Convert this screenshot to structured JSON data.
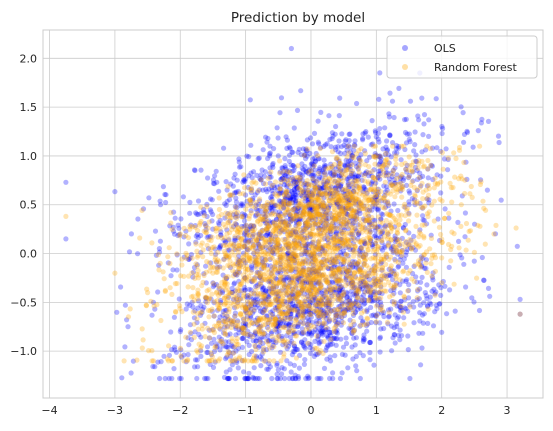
{
  "chart_data": {
    "type": "scatter",
    "title": "Prediction by model",
    "xlabel": "",
    "ylabel": "",
    "xlim": [
      -4.1,
      3.55
    ],
    "ylim": [
      -1.48,
      2.29
    ],
    "xticks": [
      -4,
      -3,
      -2,
      -1,
      0,
      1,
      2,
      3
    ],
    "xtick_labels": [
      "−4",
      "−3",
      "−2",
      "−1",
      "0",
      "1",
      "2",
      "3"
    ],
    "yticks": [
      -1.0,
      -0.5,
      0.0,
      0.5,
      1.0,
      1.5,
      2.0
    ],
    "ytick_labels": [
      "−1.0",
      "−0.5",
      "0.0",
      "0.5",
      "1.0",
      "1.5",
      "2.0"
    ],
    "grid": true,
    "legend_position": "top-right",
    "series": [
      {
        "name": "OLS",
        "color": "#0000ff",
        "alpha": 0.3,
        "marker": "circle",
        "sample_points": [
          [
            0.0,
            0.1
          ],
          [
            -1.5,
            -0.3
          ],
          [
            1.5,
            0.5
          ],
          [
            -0.5,
            1.0
          ],
          [
            0.8,
            -0.9
          ],
          [
            -2.0,
            -0.8
          ],
          [
            1.8,
            1.2
          ],
          [
            -1.0,
            0.6
          ],
          [
            0.3,
            -1.1
          ],
          [
            1.2,
            1.4
          ],
          [
            -0.3,
            2.1
          ],
          [
            -3.75,
            0.73
          ],
          [
            -3.75,
            0.15
          ],
          [
            3.2,
            -0.47
          ],
          [
            3.2,
            -0.62
          ],
          [
            -2.8,
            -0.75
          ],
          [
            2.7,
            0.65
          ],
          [
            -0.6,
            -1.28
          ],
          [
            0.7,
            -1.2
          ],
          [
            -2.3,
            0.5
          ]
        ]
      },
      {
        "name": "Random Forest",
        "color": "#ffa500",
        "alpha": 0.3,
        "marker": "circle",
        "sample_points": [
          [
            0.0,
            0.2
          ],
          [
            -1.5,
            -0.2
          ],
          [
            1.5,
            0.4
          ],
          [
            -1.8,
            -0.6
          ],
          [
            1.8,
            0.7
          ],
          [
            -0.8,
            0.1
          ],
          [
            0.8,
            0.3
          ],
          [
            -2.5,
            -0.4
          ],
          [
            2.3,
            0.5
          ],
          [
            -3.75,
            0.38
          ],
          [
            3.2,
            -0.62
          ],
          [
            -3.0,
            -0.2
          ],
          [
            2.8,
            0.2
          ],
          [
            -1.2,
            0.6
          ],
          [
            1.0,
            -0.7
          ],
          [
            0.2,
            -0.9
          ],
          [
            -0.2,
            0.9
          ],
          [
            2.0,
            -0.3
          ],
          [
            -2.0,
            0.2
          ],
          [
            1.3,
            1.0
          ]
        ]
      }
    ]
  }
}
